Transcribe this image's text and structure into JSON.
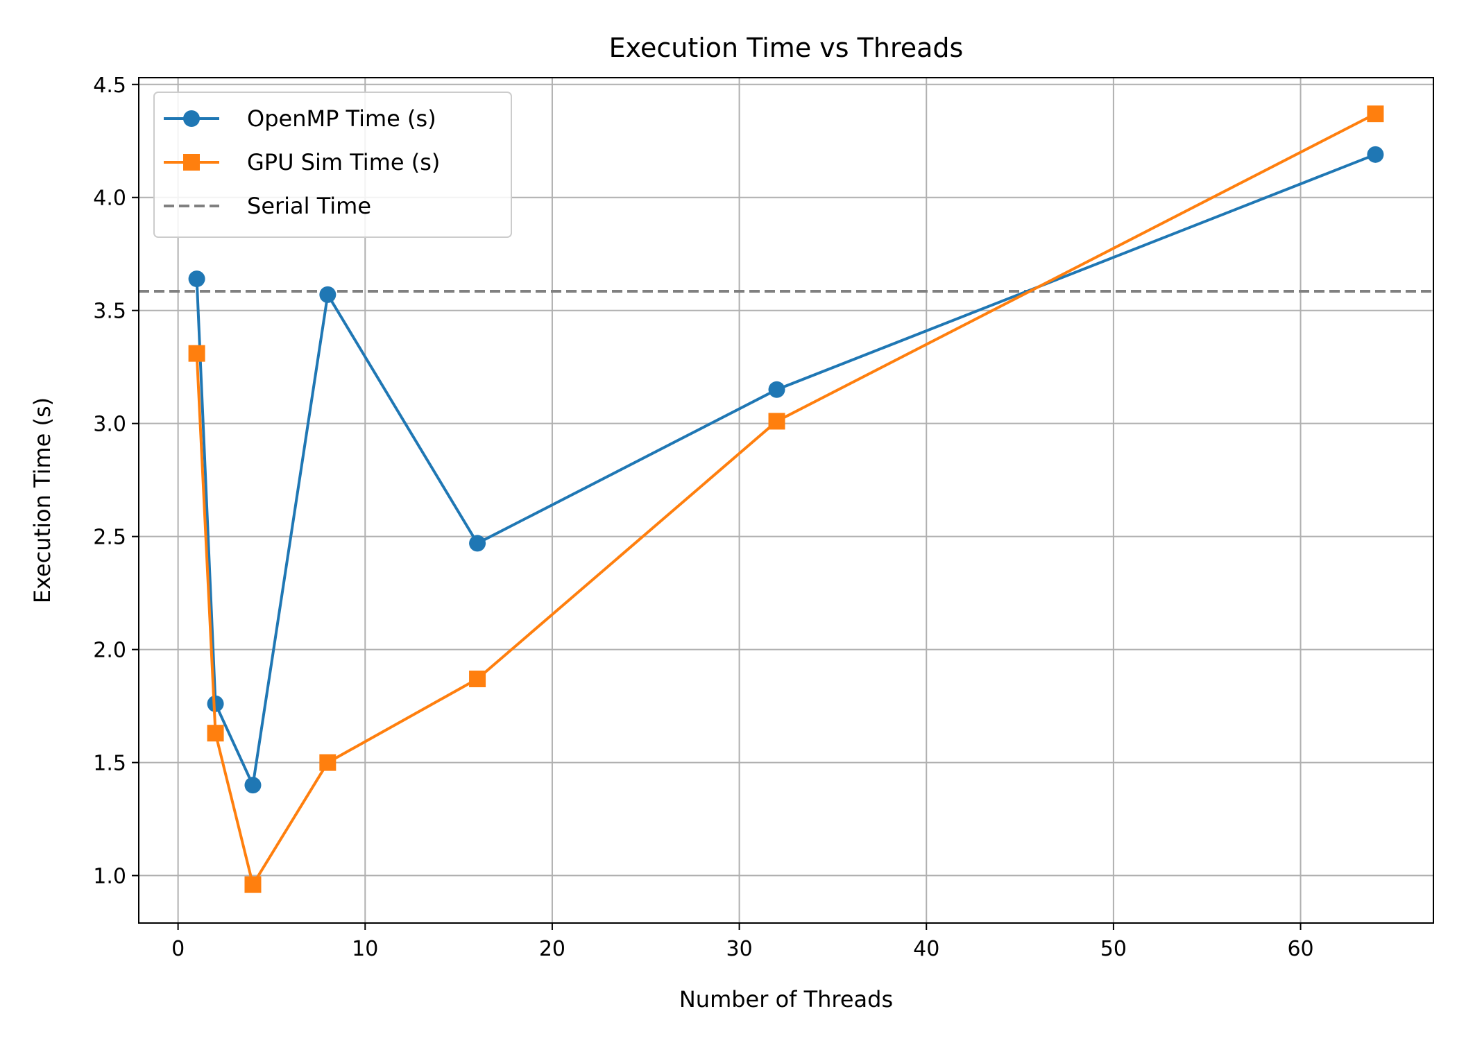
{
  "chart_data": {
    "type": "line",
    "title": "Execution Time vs Threads",
    "xlabel": "Number of Threads",
    "ylabel": "Execution Time (s)",
    "xlim": [
      -2.1,
      67.1
    ],
    "ylim": [
      0.79,
      4.53
    ],
    "xticks": [
      0,
      10,
      20,
      30,
      40,
      50,
      60
    ],
    "yticks": [
      1.0,
      1.5,
      2.0,
      2.5,
      3.0,
      3.5,
      4.0,
      4.5
    ],
    "grid": true,
    "legend_position": "top-left",
    "x": [
      1,
      2,
      4,
      8,
      16,
      32,
      64
    ],
    "series": [
      {
        "name": "OpenMP Time (s)",
        "values": [
          3.64,
          1.76,
          1.4,
          3.57,
          2.47,
          3.15,
          4.19
        ],
        "color": "#1f77b4",
        "marker": "circle"
      },
      {
        "name": "GPU Sim Time (s)",
        "values": [
          3.31,
          1.63,
          0.96,
          1.5,
          1.87,
          3.01,
          4.37
        ],
        "color": "#ff7f0e",
        "marker": "square"
      }
    ],
    "reference_line": {
      "name": "Serial Time",
      "y": 3.585,
      "color": "#808080",
      "style": "dashed"
    }
  }
}
